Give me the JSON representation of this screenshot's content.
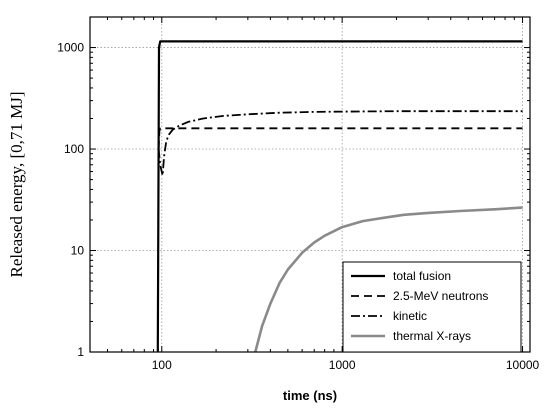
{
  "chart_data": {
    "type": "line",
    "xlabel": "time (ns)",
    "ylabel": "Released energy, [0,71 MJ]",
    "xscale": "log",
    "yscale": "log",
    "xlim": [
      40,
      11000
    ],
    "ylim": [
      1,
      2000
    ],
    "x_ticks": [
      100,
      1000,
      10000
    ],
    "x_tick_labels": [
      "100",
      "1000",
      "10000"
    ],
    "y_ticks": [
      1,
      10,
      100,
      1000
    ],
    "y_tick_labels": [
      "1",
      "10",
      "100",
      "1000"
    ],
    "grid": true,
    "legend_position": "bottom-right",
    "series": [
      {
        "name": "total fusion",
        "style": "solid",
        "color": "#000000",
        "x": [
          95,
          96.5,
          98,
          10000
        ],
        "y": [
          1,
          1000,
          1150,
          1150
        ]
      },
      {
        "name": "2.5-MeV neutrons",
        "style": "dashed",
        "color": "#000000",
        "x": [
          96,
          97,
          98,
          10000
        ],
        "y": [
          100,
          150,
          160,
          160
        ]
      },
      {
        "name": "kinetic",
        "style": "dash-dot",
        "color": "#000000",
        "x": [
          96,
          98,
          101,
          103,
          106,
          110,
          115,
          125,
          140,
          170,
          220,
          300,
          450,
          700,
          1000,
          2000,
          4000,
          10000
        ],
        "y": [
          100,
          70,
          55,
          85,
          120,
          140,
          155,
          170,
          185,
          200,
          212,
          220,
          228,
          232,
          234,
          236,
          236,
          236
        ]
      },
      {
        "name": "thermal X-rays",
        "style": "solid",
        "color": "#8a8a8a",
        "x": [
          330,
          360,
          400,
          450,
          500,
          600,
          700,
          800,
          1000,
          1300,
          1700,
          2200,
          3000,
          4500,
          7000,
          10000
        ],
        "y": [
          1,
          1.8,
          3.0,
          4.8,
          6.5,
          9.5,
          12,
          14,
          17,
          19.5,
          21,
          22.5,
          23.5,
          24.5,
          25.5,
          26.5
        ]
      }
    ]
  }
}
